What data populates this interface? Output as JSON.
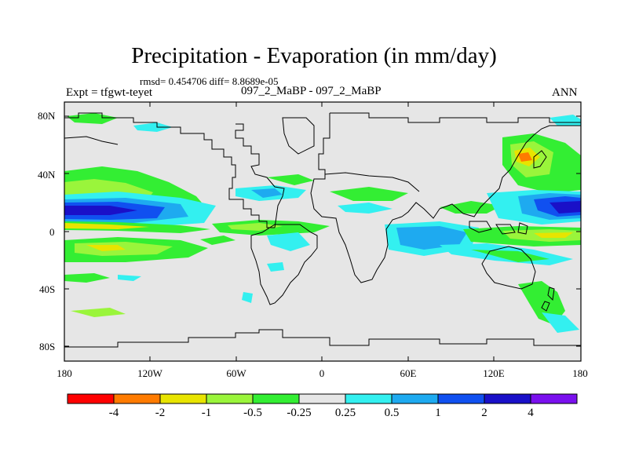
{
  "title": "Precipitation - Evaporation (in mm/day)",
  "stats": "rmsd= 0.454706 diff= 8.8689e-05",
  "experiment": "Expt = tfgwt-teyet",
  "case_label": "097_2_MaBP - 097_2_MaBP",
  "season": "ANN",
  "lat_ticks": [
    "80N",
    "40N",
    "0",
    "40S",
    "80S"
  ],
  "lon_ticks": [
    "180",
    "120W",
    "60W",
    "0",
    "60E",
    "120E",
    "180"
  ],
  "colorbar": {
    "colors": [
      "#ff0000",
      "#ff7b00",
      "#e8e400",
      "#9af53b",
      "#33ee33",
      "#e6e6e6",
      "#33f0f0",
      "#1eaaf0",
      "#1050f0",
      "#1a10c8",
      "#7a10ee"
    ],
    "labels": [
      "-4",
      "-2",
      "-1",
      "-0.5",
      "-0.25",
      "0.25",
      "0.5",
      "1",
      "2",
      "4"
    ]
  },
  "chart_data": {
    "type": "map-contour",
    "variable": "Precipitation - Evaporation",
    "units": "mm/day",
    "levels": [
      -4,
      -2,
      -1,
      -0.5,
      -0.25,
      0.25,
      0.5,
      1,
      2,
      4
    ],
    "lat_range": [
      -90,
      90
    ],
    "lon_range": [
      -180,
      180
    ],
    "rmsd": 0.454706,
    "diff": 8.8689e-05
  }
}
